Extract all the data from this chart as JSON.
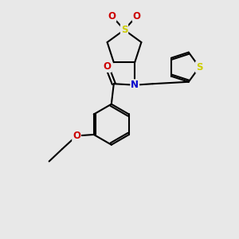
{
  "bg_color": "#e8e8e8",
  "bond_color": "#000000",
  "bond_width": 1.5,
  "dbo": 0.07,
  "atom_colors": {
    "S_sulfonyl": "#cccc00",
    "S_thiophene": "#cccc00",
    "N": "#0000cc",
    "O": "#cc0000"
  },
  "font_size": 8.5
}
